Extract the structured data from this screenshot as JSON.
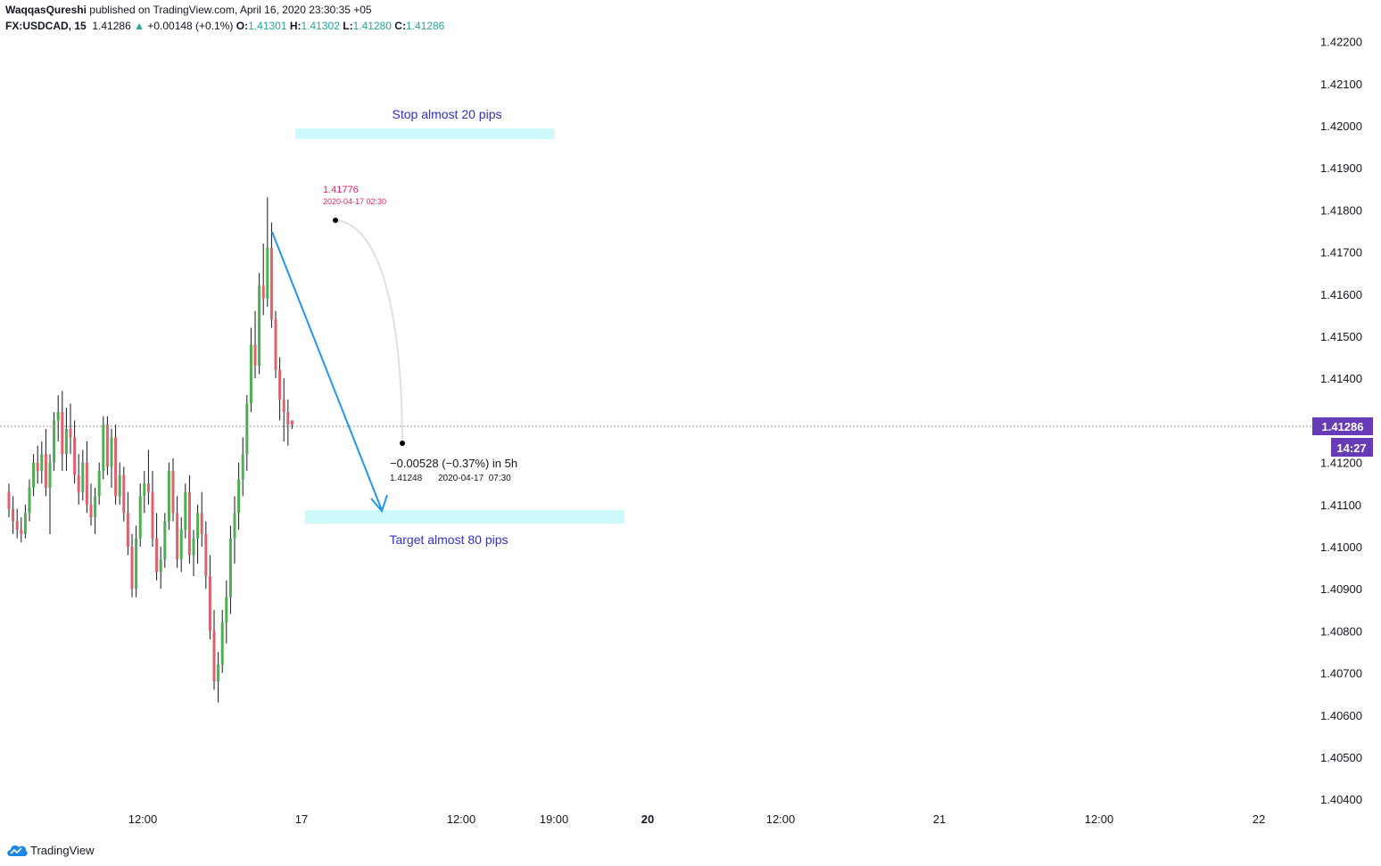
{
  "header": {
    "author": "WaqqasQureshi",
    "published": "published on TradingView.com, April 16, 2020 23:30:35 +05",
    "symbol": "FX:USDCAD, 15",
    "last": "1.41286",
    "change": "+0.00148 (+0.1%)",
    "o_label": "O:",
    "o": "1.41301",
    "h_label": "H:",
    "h": "1.41302",
    "l_label": "L:",
    "l": "1.41280",
    "c_label": "C:",
    "c": "1.41286"
  },
  "price_axis": {
    "labels": [
      "1.42200",
      "1.42100",
      "1.42000",
      "1.41900",
      "1.41800",
      "1.41700",
      "1.41600",
      "1.41500",
      "1.41400",
      "1.41200",
      "1.41100",
      "1.41000",
      "1.40900",
      "1.40800",
      "1.40700",
      "1.40600",
      "1.40500",
      "1.40400"
    ],
    "current_price": "1.41286",
    "countdown": "14:27"
  },
  "time_axis": {
    "labels": [
      "12:00",
      "17",
      "12:00",
      "19:00",
      "20",
      "12:00",
      "21",
      "12:00",
      "22"
    ]
  },
  "annotations": {
    "stop_label": "Stop almost 20 pips",
    "target_label": "Target almost 80 pips",
    "point_a_price": "1.41776",
    "point_a_time": "2020-04-17 02:30",
    "point_b_change": "−0.00528 (−0.37%) in 5h",
    "point_b_price": "1.41248",
    "point_b_time": "2020-04-17  07:30"
  },
  "colors": {
    "up": "#4caf50",
    "down": "#e0606e",
    "label_bg": "#673ab7",
    "zone": "#cdf9fb",
    "arrow": "#2196f3",
    "text_blue": "#2f2fd0",
    "pink": "#e91e63"
  },
  "branding": {
    "name": "TradingView"
  },
  "chart_data": {
    "type": "candlestick",
    "symbol": "FX:USDCAD",
    "interval": "15",
    "ylim": [
      1.404,
      1.4224
    ],
    "current_price": 1.41286,
    "candles": [
      [
        1.4113,
        1.4115,
        1.4107,
        1.4109
      ],
      [
        1.4109,
        1.4112,
        1.4103,
        1.4106
      ],
      [
        1.4106,
        1.4109,
        1.4102,
        1.4104
      ],
      [
        1.4104,
        1.4107,
        1.4101,
        1.4103
      ],
      [
        1.4103,
        1.411,
        1.4102,
        1.4108
      ],
      [
        1.4108,
        1.4116,
        1.4106,
        1.4114
      ],
      [
        1.4114,
        1.4122,
        1.4112,
        1.412
      ],
      [
        1.412,
        1.4124,
        1.4115,
        1.4118
      ],
      [
        1.4118,
        1.4125,
        1.4115,
        1.4122
      ],
      [
        1.4122,
        1.4128,
        1.4112,
        1.4114
      ],
      [
        1.4114,
        1.4122,
        1.4103,
        1.412
      ],
      [
        1.412,
        1.4132,
        1.4118,
        1.413
      ],
      [
        1.413,
        1.4136,
        1.4125,
        1.4132
      ],
      [
        1.4132,
        1.4137,
        1.4118,
        1.4122
      ],
      [
        1.4122,
        1.4133,
        1.4118,
        1.4128
      ],
      [
        1.4128,
        1.4134,
        1.4122,
        1.4126
      ],
      [
        1.4126,
        1.413,
        1.4115,
        1.4117
      ],
      [
        1.4117,
        1.4122,
        1.411,
        1.4113
      ],
      [
        1.4113,
        1.4123,
        1.4111,
        1.412
      ],
      [
        1.412,
        1.4125,
        1.4108,
        1.411
      ],
      [
        1.411,
        1.4115,
        1.4105,
        1.4107
      ],
      [
        1.4107,
        1.4114,
        1.4103,
        1.4112
      ],
      [
        1.4112,
        1.412,
        1.411,
        1.4118
      ],
      [
        1.4118,
        1.4131,
        1.4116,
        1.4129
      ],
      [
        1.4129,
        1.4131,
        1.4117,
        1.4119
      ],
      [
        1.4119,
        1.4128,
        1.4114,
        1.4126
      ],
      [
        1.4126,
        1.4129,
        1.411,
        1.4112
      ],
      [
        1.4112,
        1.412,
        1.411,
        1.4117
      ],
      [
        1.4117,
        1.4119,
        1.4106,
        1.4108
      ],
      [
        1.4108,
        1.4113,
        1.4098,
        1.41
      ],
      [
        1.41,
        1.4103,
        1.4088,
        1.409
      ],
      [
        1.409,
        1.4105,
        1.4088,
        1.4102
      ],
      [
        1.4102,
        1.4115,
        1.41,
        1.4112
      ],
      [
        1.4112,
        1.4118,
        1.4108,
        1.4115
      ],
      [
        1.4115,
        1.4123,
        1.411,
        1.4113
      ],
      [
        1.4113,
        1.4118,
        1.41,
        1.4102
      ],
      [
        1.4102,
        1.4108,
        1.4092,
        1.4094
      ],
      [
        1.4094,
        1.41,
        1.409,
        1.4097
      ],
      [
        1.4097,
        1.4108,
        1.4095,
        1.4106
      ],
      [
        1.4106,
        1.412,
        1.4104,
        1.4118
      ],
      [
        1.4118,
        1.4121,
        1.4106,
        1.4108
      ],
      [
        1.4108,
        1.4112,
        1.4095,
        1.4097
      ],
      [
        1.4097,
        1.4107,
        1.4094,
        1.4104
      ],
      [
        1.4104,
        1.4115,
        1.4102,
        1.4113
      ],
      [
        1.4113,
        1.4117,
        1.4096,
        1.4098
      ],
      [
        1.4098,
        1.4104,
        1.4093,
        1.4102
      ],
      [
        1.4102,
        1.411,
        1.4096,
        1.4108
      ],
      [
        1.4108,
        1.4113,
        1.41,
        1.4103
      ],
      [
        1.4103,
        1.4106,
        1.409,
        1.4093
      ],
      [
        1.4093,
        1.4098,
        1.4078,
        1.408
      ],
      [
        1.408,
        1.4085,
        1.4066,
        1.4068
      ],
      [
        1.4068,
        1.4075,
        1.4063,
        1.4072
      ],
      [
        1.4072,
        1.4085,
        1.407,
        1.4082
      ],
      [
        1.4082,
        1.4092,
        1.4077,
        1.4088
      ],
      [
        1.4088,
        1.4105,
        1.4084,
        1.4102
      ],
      [
        1.4102,
        1.4112,
        1.4096,
        1.4108
      ],
      [
        1.4108,
        1.412,
        1.4104,
        1.4116
      ],
      [
        1.4116,
        1.4126,
        1.4112,
        1.4122
      ],
      [
        1.4122,
        1.4136,
        1.4118,
        1.4134
      ],
      [
        1.4134,
        1.4152,
        1.4132,
        1.4148
      ],
      [
        1.4148,
        1.4156,
        1.414,
        1.4143
      ],
      [
        1.4143,
        1.4165,
        1.4141,
        1.4162
      ],
      [
        1.4162,
        1.4172,
        1.4155,
        1.4159
      ],
      [
        1.4159,
        1.4183,
        1.4157,
        1.4171
      ],
      [
        1.4171,
        1.4177,
        1.4152,
        1.4154
      ],
      [
        1.4154,
        1.4156,
        1.414,
        1.4142
      ],
      [
        1.4142,
        1.4145,
        1.413,
        1.4135
      ],
      [
        1.4135,
        1.414,
        1.4125,
        1.4132
      ],
      [
        1.4132,
        1.4135,
        1.4124,
        1.4129
      ],
      [
        1.413,
        1.413,
        1.4128,
        1.4129
      ]
    ]
  }
}
